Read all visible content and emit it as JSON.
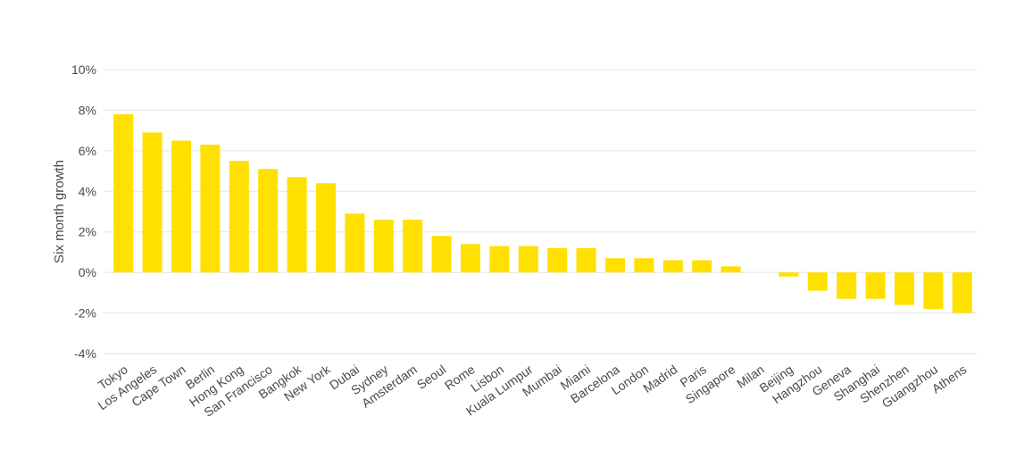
{
  "chart_data": {
    "type": "bar",
    "title": "",
    "xlabel": "",
    "ylabel": "Six month growth",
    "ylim": [
      -4,
      10
    ],
    "yticks": [
      -4,
      -2,
      0,
      2,
      4,
      6,
      8,
      10
    ],
    "ytick_labels": [
      "-4%",
      "-2%",
      "0%",
      "2%",
      "4%",
      "6%",
      "8%",
      "10%"
    ],
    "grid": true,
    "bar_color": "#FFE000",
    "categories": [
      "Tokyo",
      "Los Angeles",
      "Cape Town",
      "Berlin",
      "Hong Kong",
      "San Francisco",
      "Bangkok",
      "New York",
      "Dubai",
      "Sydney",
      "Amsterdam",
      "Seoul",
      "Rome",
      "Lisbon",
      "Kuala Lumpur",
      "Mumbai",
      "Miami",
      "Barcelona",
      "London",
      "Madrid",
      "Paris",
      "Singapore",
      "Milan",
      "Beijing",
      "Hangzhou",
      "Geneva",
      "Shanghai",
      "Shenzhen",
      "Guangzhou",
      "Athens"
    ],
    "values": [
      7.8,
      6.9,
      6.5,
      6.3,
      5.5,
      5.1,
      4.7,
      4.4,
      2.9,
      2.6,
      2.6,
      1.8,
      1.4,
      1.3,
      1.3,
      1.2,
      1.2,
      0.7,
      0.7,
      0.6,
      0.6,
      0.3,
      0.0,
      -0.2,
      -0.9,
      -1.3,
      -1.3,
      -1.6,
      -1.8,
      -2.0
    ]
  }
}
